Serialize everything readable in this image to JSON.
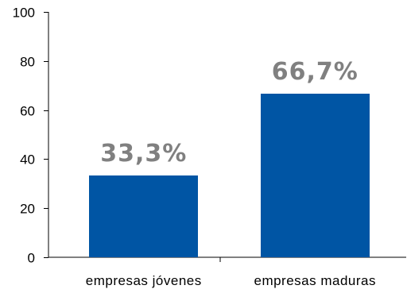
{
  "chart_data": {
    "type": "bar",
    "categories": [
      "empresas jóvenes",
      "empresas maduras"
    ],
    "values": [
      33.3,
      66.7
    ],
    "data_labels": [
      "33,3%",
      "66,7%"
    ],
    "title": "",
    "xlabel": "",
    "ylabel": "",
    "ylim": [
      0,
      100
    ],
    "yticks": [
      0,
      20,
      40,
      60,
      80,
      100
    ],
    "ytick_labels": [
      "0",
      "20",
      "40",
      "60",
      "80",
      "100"
    ],
    "grid": false,
    "legend": "none",
    "colors": {
      "bar": "#0055A4",
      "data_label": "#808080",
      "axis": "#000000"
    }
  }
}
